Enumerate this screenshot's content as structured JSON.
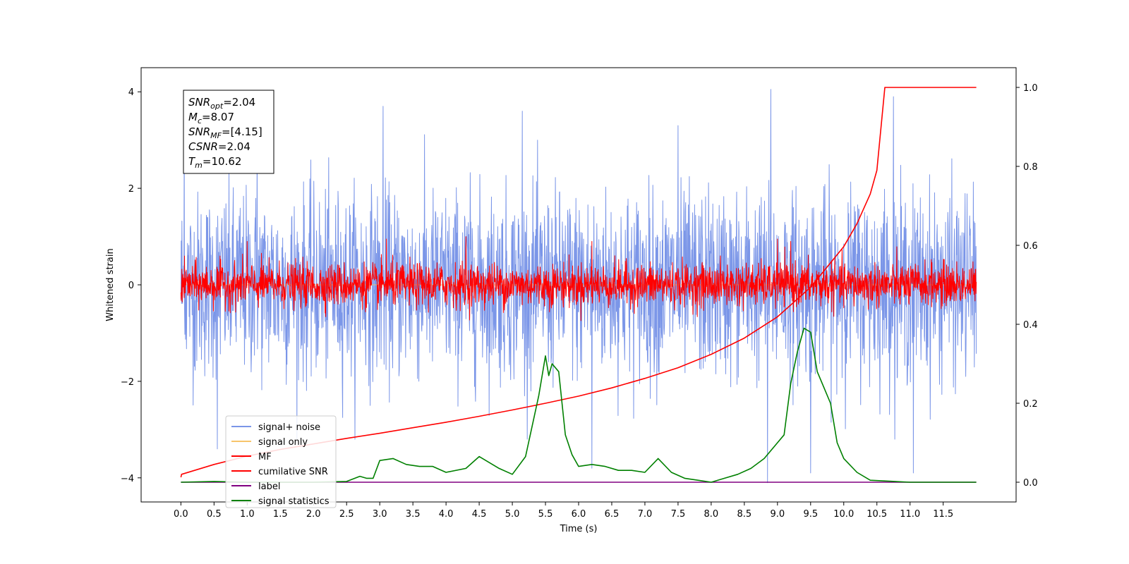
{
  "chart_data": {
    "type": "line",
    "xlabel": "Time (s)",
    "ylabel": "Whitened strain",
    "xlim": [
      -0.6,
      12.6
    ],
    "ylim": [
      -4.5,
      4.5
    ],
    "y2lim": [
      -0.05,
      1.05
    ],
    "x_ticks": [
      "0.0",
      "0.5",
      "1.0",
      "1.5",
      "2.0",
      "2.5",
      "3.0",
      "3.5",
      "4.0",
      "4.5",
      "5.0",
      "5.5",
      "6.0",
      "6.5",
      "7.0",
      "7.5",
      "8.0",
      "8.5",
      "9.0",
      "9.5",
      "10.0",
      "10.5",
      "11.0",
      "11.5"
    ],
    "y_ticks": [
      "−4",
      "−2",
      "0",
      "2",
      "4"
    ],
    "y2_ticks": [
      "0.0",
      "0.2",
      "0.4",
      "0.6",
      "0.8",
      "1.0"
    ],
    "grid": false,
    "legend_position": "lower-left",
    "info_box": [
      {
        "main": "SNR",
        "sub": "opt",
        "rest": "=2.04"
      },
      {
        "main": "M",
        "sub": "c",
        "rest": "=8.07"
      },
      {
        "main": "SNR",
        "sub": "MF",
        "rest": "=[4.15]"
      },
      {
        "main": "CSNR",
        "sub": "",
        "rest": "=2.04"
      },
      {
        "main": "T",
        "sub": "m",
        "rest": "=10.62"
      }
    ],
    "series": [
      {
        "name": "signal+ noise",
        "color": "#7b96e8",
        "axis": "left",
        "kind": "noise",
        "x_range": [
          0,
          12
        ],
        "approx_std": 0.95,
        "notable_spikes": [
          [
            0.05,
            3.2
          ],
          [
            1.15,
            3.1
          ],
          [
            3.05,
            3.7
          ],
          [
            5.15,
            3.6
          ],
          [
            7.5,
            3.3
          ],
          [
            8.9,
            4.05
          ],
          [
            10.75,
            3.9
          ],
          [
            8.85,
            -4.1
          ],
          [
            9.5,
            -3.9
          ],
          [
            6.2,
            -3.8
          ],
          [
            11.05,
            -3.9
          ],
          [
            0.55,
            -3.4
          ]
        ]
      },
      {
        "name": "signal only",
        "color": "#f7c56b",
        "axis": "left",
        "kind": "flat",
        "x_range": [
          0,
          12
        ],
        "value": 0
      },
      {
        "name": "MF",
        "color": "#ff0000",
        "axis": "left",
        "kind": "noise",
        "x_range": [
          0,
          12
        ],
        "approx_std": 0.22,
        "notable_spikes": [
          [
            1.0,
            0.9
          ],
          [
            3.1,
            0.95
          ],
          [
            4.3,
            1.0
          ],
          [
            6.2,
            0.9
          ],
          [
            9.0,
            0.95
          ],
          [
            9.2,
            0.9
          ]
        ]
      },
      {
        "name": "cumilative SNR",
        "color": "#ff0000",
        "axis": "right",
        "x": [
          0.0,
          0.01,
          0.5,
          1.0,
          1.5,
          2.0,
          2.5,
          3.0,
          3.5,
          4.0,
          4.5,
          5.0,
          5.5,
          6.0,
          6.5,
          7.0,
          7.5,
          8.0,
          8.5,
          9.0,
          9.5,
          10.0,
          10.2,
          10.4,
          10.5,
          10.62,
          10.63,
          12.0
        ],
        "y": [
          0.0125,
          0.02,
          0.045,
          0.066,
          0.083,
          0.097,
          0.111,
          0.124,
          0.138,
          0.152,
          0.167,
          0.183,
          0.2,
          0.218,
          0.239,
          0.263,
          0.29,
          0.324,
          0.365,
          0.419,
          0.494,
          0.597,
          0.655,
          0.73,
          0.79,
          1.0,
          1.0,
          1.0
        ]
      },
      {
        "name": "label",
        "color": "#800080",
        "axis": "right",
        "x": [
          0.0,
          12.0
        ],
        "y": [
          0.0,
          0.0
        ]
      },
      {
        "name": "signal statistics",
        "color": "#008000",
        "axis": "right",
        "x": [
          0.0,
          0.5,
          1.0,
          1.5,
          2.0,
          2.5,
          2.7,
          2.8,
          2.9,
          3.0,
          3.2,
          3.4,
          3.6,
          3.8,
          4.0,
          4.3,
          4.5,
          4.6,
          4.8,
          5.0,
          5.2,
          5.4,
          5.5,
          5.55,
          5.6,
          5.7,
          5.8,
          5.9,
          6.0,
          6.2,
          6.4,
          6.6,
          6.8,
          7.0,
          7.2,
          7.4,
          7.6,
          7.8,
          8.0,
          8.2,
          8.4,
          8.6,
          8.8,
          9.0,
          9.1,
          9.2,
          9.3,
          9.4,
          9.5,
          9.6,
          9.7,
          9.8,
          9.9,
          10.0,
          10.2,
          10.4,
          11.0,
          12.0
        ],
        "y": [
          0.0,
          0.002,
          0.0,
          0.0,
          0.0,
          0.002,
          0.015,
          0.01,
          0.01,
          0.055,
          0.06,
          0.045,
          0.04,
          0.04,
          0.025,
          0.035,
          0.065,
          0.055,
          0.035,
          0.02,
          0.065,
          0.22,
          0.32,
          0.27,
          0.3,
          0.28,
          0.12,
          0.07,
          0.04,
          0.045,
          0.04,
          0.03,
          0.03,
          0.025,
          0.06,
          0.025,
          0.01,
          0.005,
          0.0,
          0.01,
          0.02,
          0.035,
          0.06,
          0.1,
          0.12,
          0.25,
          0.33,
          0.39,
          0.38,
          0.28,
          0.24,
          0.2,
          0.1,
          0.06,
          0.025,
          0.005,
          0.0,
          0.0
        ]
      }
    ]
  }
}
